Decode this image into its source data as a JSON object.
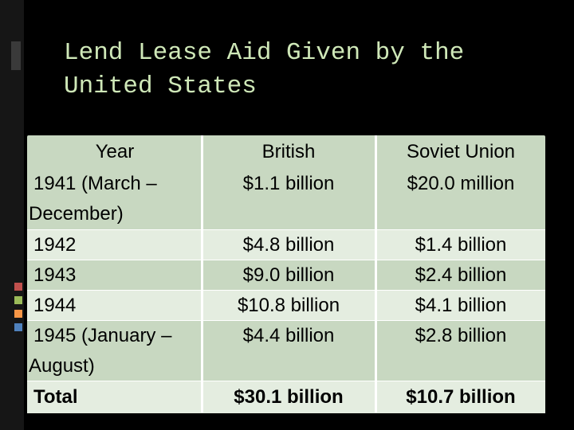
{
  "title": {
    "line1": "Lend Lease Aid Given by the",
    "line2": "United States"
  },
  "table": {
    "headers": {
      "year": "Year",
      "british": "British",
      "soviet": "Soviet Union"
    },
    "rows": [
      {
        "year_line1": "1941 (March –",
        "year_line2": "December)",
        "british": "$1.1 billion",
        "soviet": "$20.0 million"
      },
      {
        "year": "1942",
        "british": "$4.8 billion",
        "soviet": "$1.4 billion"
      },
      {
        "year": "1943",
        "british": "$9.0 billion",
        "soviet": "$2.4 billion"
      },
      {
        "year": "1944",
        "british": "$10.8 billion",
        "soviet": "$4.1 billion"
      },
      {
        "year_line1": "1945 (January –",
        "year_line2": "August)",
        "british": "$4.4 billion",
        "soviet": "$2.8 billion"
      },
      {
        "year": "Total",
        "british": "$30.1 billion",
        "soviet": "$10.7 billion"
      }
    ]
  },
  "colors": {
    "title_text": "#cfe8b8",
    "table_band_dark": "#c8d8c1",
    "table_band_light": "#e4ede0",
    "accent_red": "#c0504d",
    "accent_green": "#9bbb59",
    "accent_orange": "#f79646",
    "accent_blue": "#4f81bd"
  }
}
